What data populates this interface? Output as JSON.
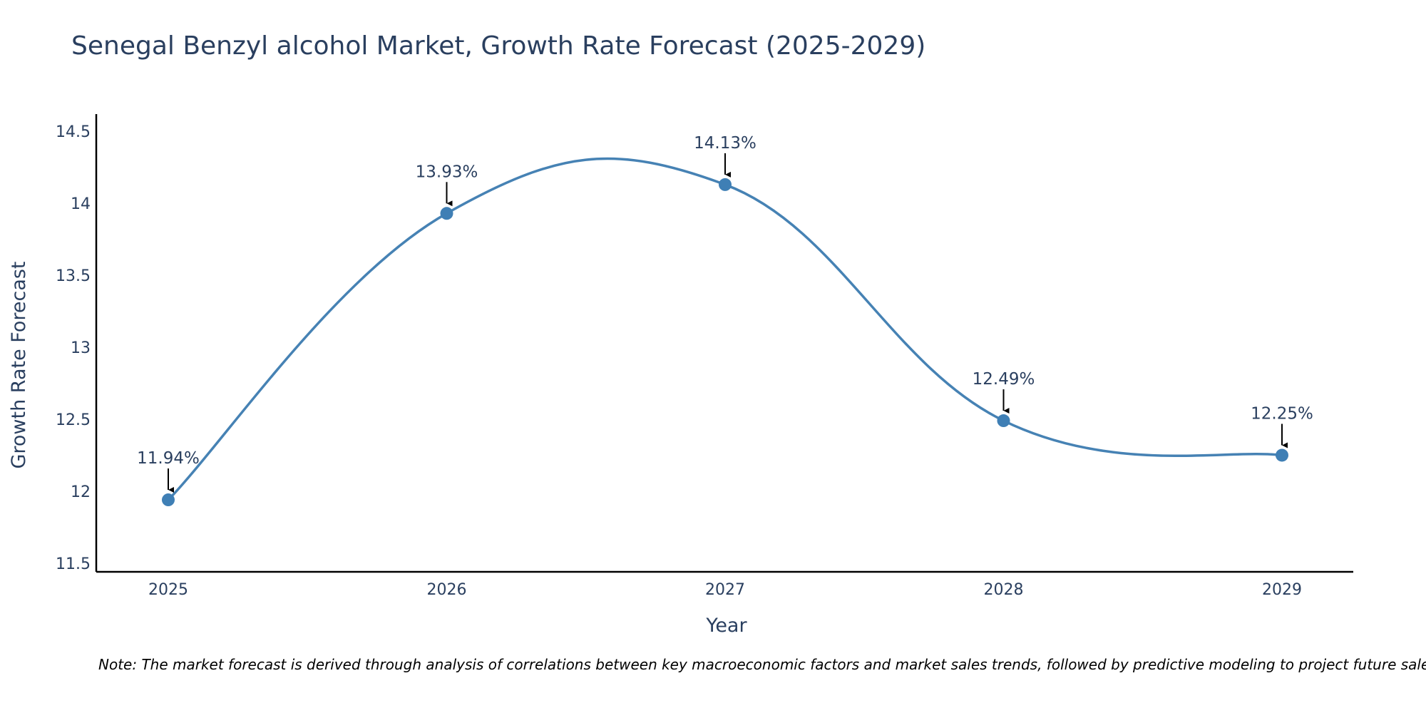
{
  "chart_data": {
    "type": "line",
    "title": "Senegal Benzyl alcohol Market, Growth Rate Forecast (2025-2029)",
    "xlabel": "Year",
    "ylabel": "Growth Rate Forecast",
    "categories": [
      "2025",
      "2026",
      "2027",
      "2028",
      "2029"
    ],
    "series": [
      {
        "name": "Growth Rate Forecast",
        "values": [
          11.94,
          13.93,
          14.13,
          12.49,
          12.25
        ],
        "labels": [
          "11.94%",
          "13.93%",
          "14.13%",
          "12.49%",
          "12.25%"
        ]
      }
    ],
    "yticks": [
      11.5,
      12,
      12.5,
      13,
      13.5,
      14,
      14.5
    ],
    "ytick_labels": [
      "11.5",
      "12",
      "12.5",
      "13",
      "13.5",
      "14",
      "14.5"
    ],
    "ylim": [
      11.44,
      14.62
    ],
    "grid": false,
    "line_shape": "spline",
    "note": "Note: The market forecast is derived through analysis of correlations between key macroeconomic factors and market sales trends, followed by predictive modeling to project future sales.",
    "colors": {
      "line": "#4682b4",
      "marker": "#3f7fb5",
      "text": "#2a3f5f",
      "axis": "#000000"
    }
  }
}
